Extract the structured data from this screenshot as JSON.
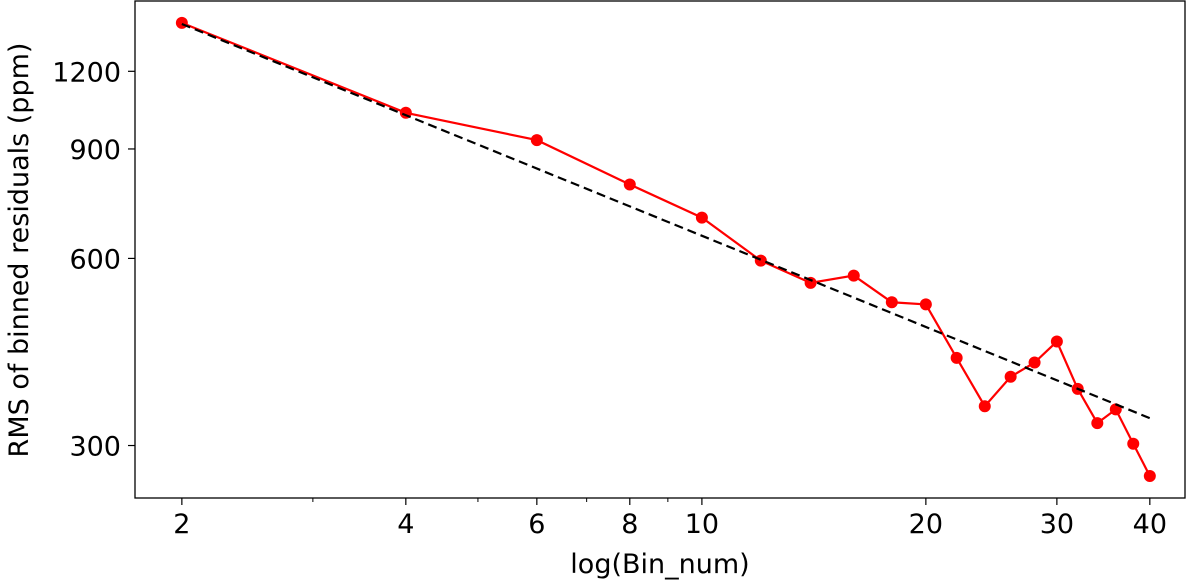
{
  "chart_data": {
    "type": "line",
    "title": "",
    "xlabel": "log(Bin_num)",
    "ylabel": "RMS of binned residuals (ppm)",
    "x_scale": "log",
    "y_scale": "log",
    "xlim": [
      1.73,
      44.6
    ],
    "ylim": [
      247,
      1557
    ],
    "x_ticks": [
      2,
      4,
      6,
      8,
      10,
      20,
      30,
      40
    ],
    "x_tick_labels": [
      "2",
      "4",
      "6",
      "8",
      "10",
      "20",
      "30",
      "40"
    ],
    "y_ticks": [
      300,
      600,
      900,
      1200
    ],
    "y_tick_labels": [
      "300",
      "600",
      "900",
      "1200"
    ],
    "grid": false,
    "series": [
      {
        "style": "line-markers",
        "color": "#ff0000",
        "x": [
          2,
          4,
          6,
          8,
          10,
          12,
          14,
          16,
          18,
          20,
          22,
          24,
          26,
          28,
          30,
          32,
          34,
          36,
          38,
          40
        ],
        "y": [
          1436,
          1029,
          930,
          789,
          698,
          595,
          548,
          563,
          510,
          506,
          415,
          347,
          387,
          408,
          441,
          370,
          326,
          343,
          302,
          268
        ]
      },
      {
        "style": "dashed",
        "color": "#000000",
        "x": [
          2,
          40
        ],
        "y": [
          1430,
          332
        ]
      }
    ]
  }
}
